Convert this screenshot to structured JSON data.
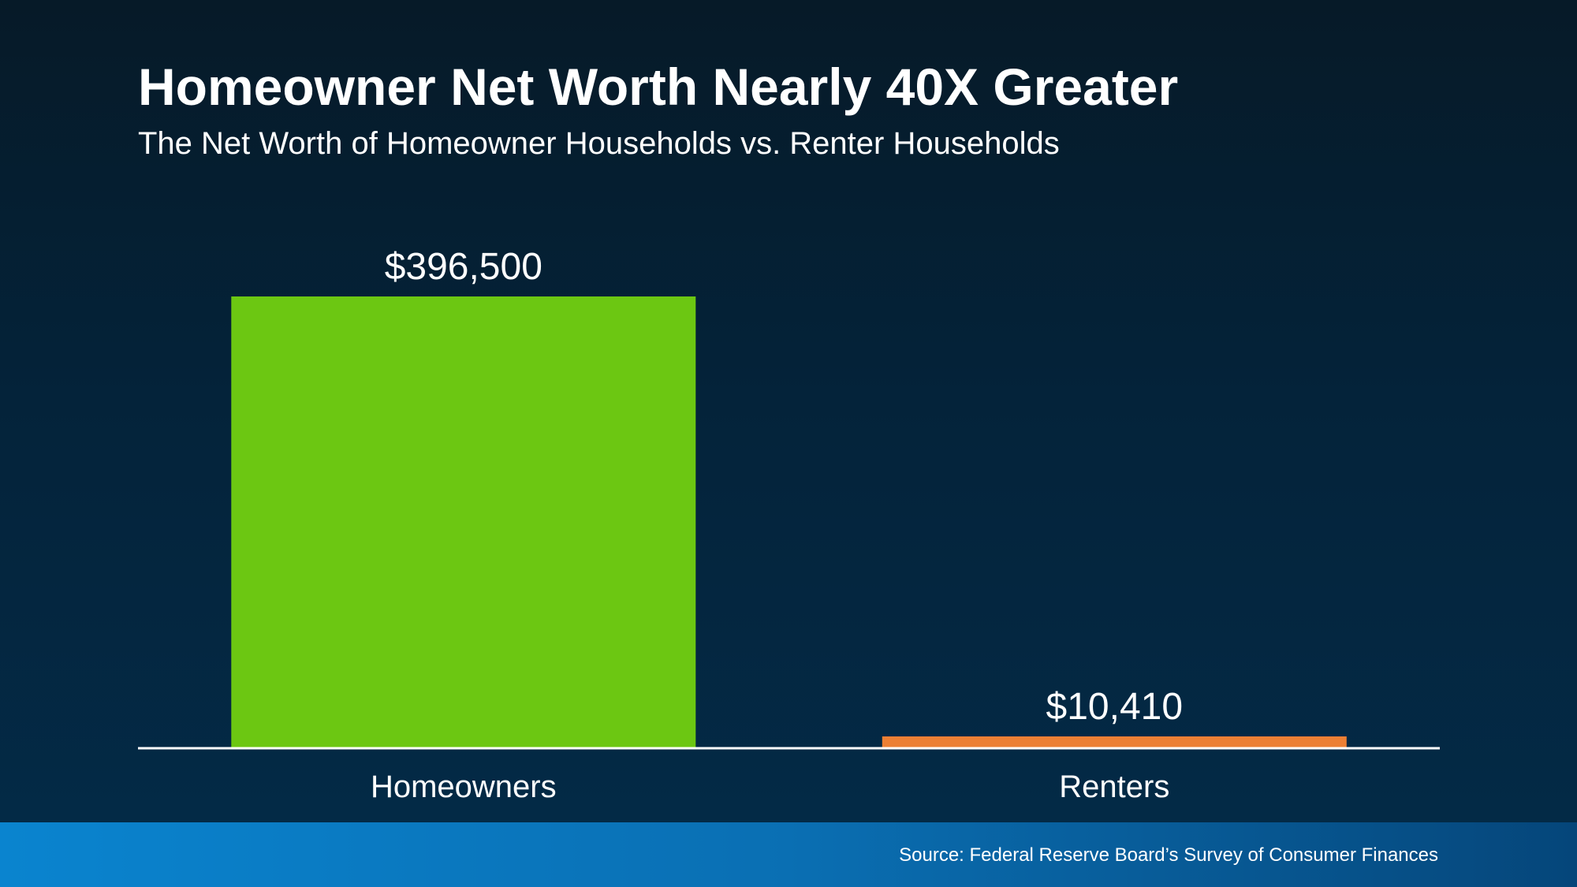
{
  "header": {
    "title": "Homeowner Net Worth Nearly 40X Greater",
    "subtitle": "The Net Worth of Homeowner Households vs. Renter Households"
  },
  "footer": {
    "source": "Source: Federal Reserve Board’s Survey of Consumer Finances"
  },
  "colors": {
    "homeowners": "#6cc712",
    "renters": "#ec7f34",
    "axis": "#ffffff"
  },
  "chart_data": {
    "type": "bar",
    "title": "Homeowner Net Worth Nearly 40X Greater",
    "subtitle": "The Net Worth of Homeowner Households vs. Renter Households",
    "categories": [
      "Homeowners",
      "Renters"
    ],
    "values": [
      396500,
      10410
    ],
    "data_labels": [
      "$396,500",
      "$10,410"
    ],
    "xlabel": "",
    "ylabel": "",
    "ylim": [
      0,
      396500
    ],
    "grid": false,
    "legend": "none"
  }
}
